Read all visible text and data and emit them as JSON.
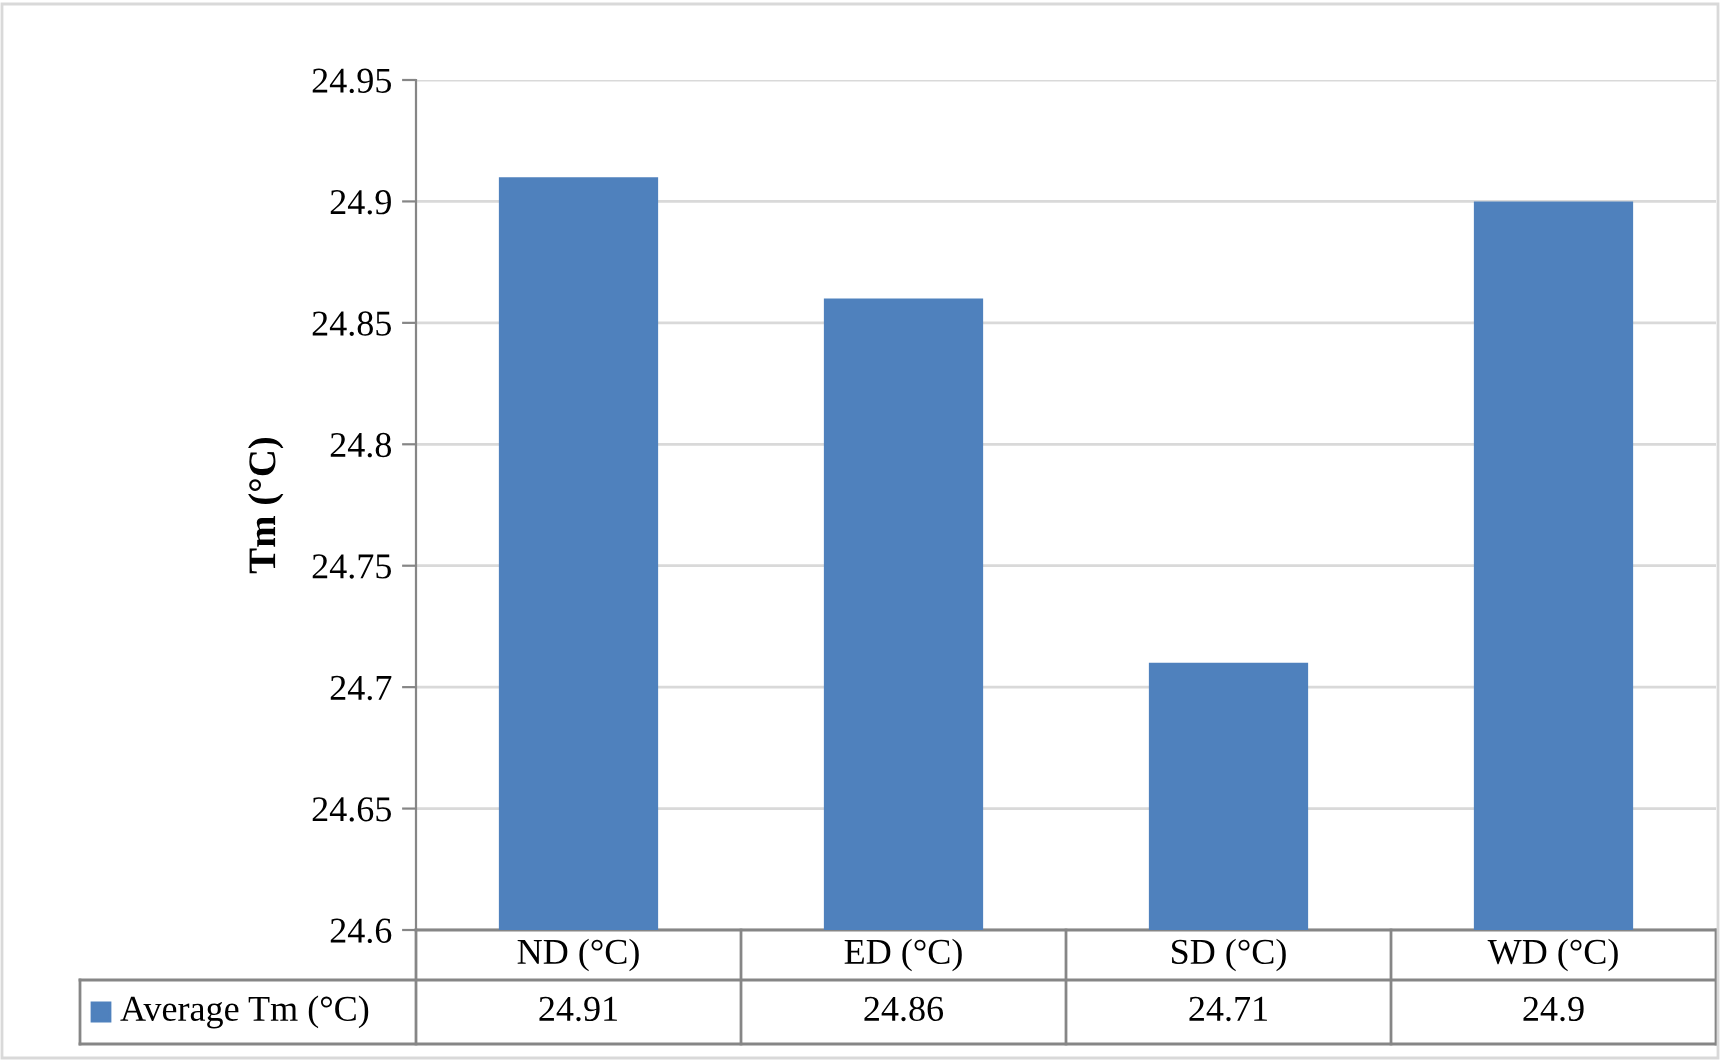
{
  "chart_data": {
    "type": "bar",
    "ylabel": "Tm (°C)",
    "categories": [
      "ND (°C)",
      "ED (°C)",
      "SD (°C)",
      "WD (°C)"
    ],
    "series": [
      {
        "name": "Average Tm (°C)",
        "color": "#4f81bd",
        "values": [
          24.91,
          24.86,
          24.71,
          24.9
        ]
      }
    ],
    "ylim": [
      24.6,
      24.95
    ],
    "yticks": [
      24.6,
      24.65,
      24.7,
      24.75,
      24.8,
      24.85,
      24.9,
      24.95
    ],
    "grid": "y",
    "legend": "bottom left",
    "data_labels": true
  }
}
